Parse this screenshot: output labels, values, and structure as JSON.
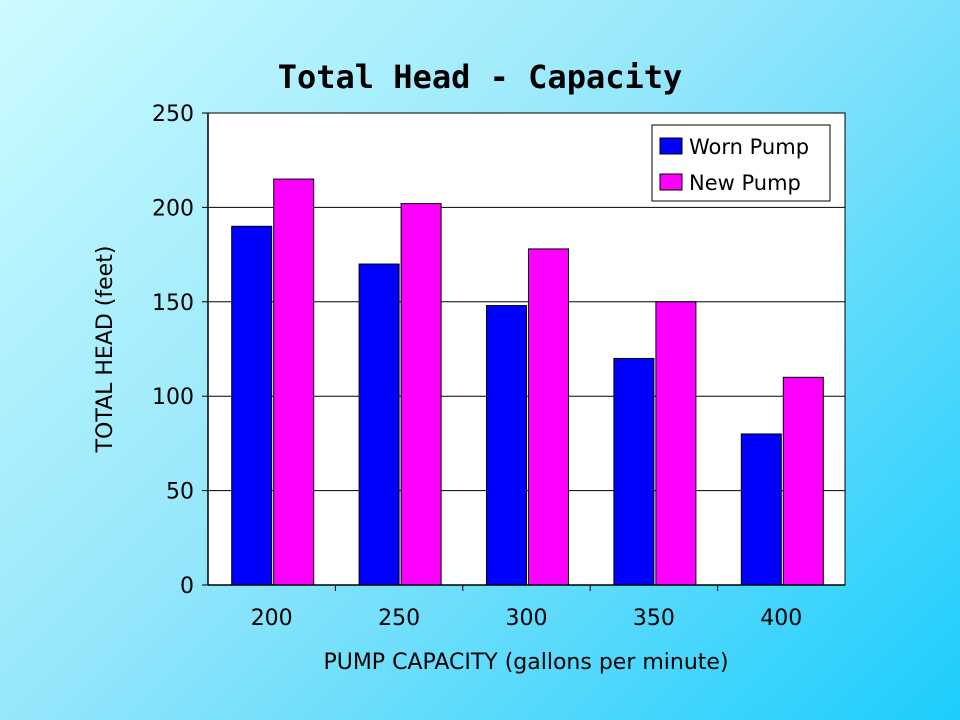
{
  "chart_data": {
    "type": "bar",
    "title": "Total Head - Capacity",
    "xlabel": "PUMP CAPACITY (gallons per minute)",
    "ylabel": "TOTAL HEAD (feet)",
    "categories": [
      "200",
      "250",
      "300",
      "350",
      "400"
    ],
    "series": [
      {
        "name": "Worn Pump",
        "color": "#0000ff",
        "values": [
          190,
          170,
          148,
          120,
          80
        ]
      },
      {
        "name": "New Pump",
        "color": "#ff00ff",
        "values": [
          215,
          202,
          178,
          150,
          110
        ]
      }
    ],
    "ylim": [
      0,
      250
    ],
    "yticks": [
      0,
      50,
      100,
      150,
      200,
      250
    ],
    "grid": true,
    "legend": "top-right",
    "plot_background": "#ffffff"
  }
}
